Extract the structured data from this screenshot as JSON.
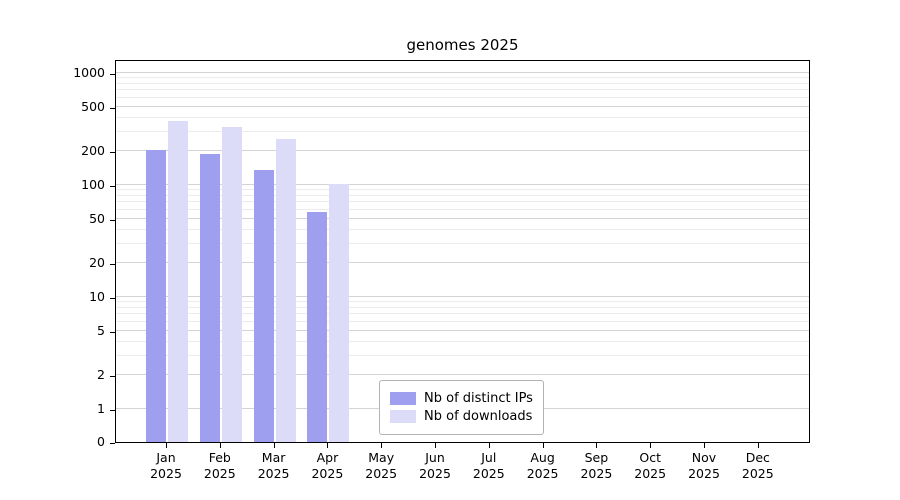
{
  "chart_data": {
    "type": "bar",
    "title": "genomes 2025",
    "year": "2025",
    "categories": [
      "Jan",
      "Feb",
      "Mar",
      "Apr",
      "May",
      "Jun",
      "Jul",
      "Aug",
      "Sep",
      "Oct",
      "Nov",
      "Dec"
    ],
    "series": [
      {
        "name": "Nb of distinct IPs",
        "color": "#9f9ff0",
        "values": [
          205,
          190,
          135,
          58,
          0,
          0,
          0,
          0,
          0,
          0,
          0,
          0
        ]
      },
      {
        "name": "Nb of downloads",
        "color": "#dcdcf8",
        "values": [
          370,
          330,
          255,
          103,
          0,
          0,
          0,
          0,
          0,
          0,
          0,
          0
        ]
      }
    ],
    "yscale": "symlog",
    "yticks": [
      0,
      1,
      2,
      5,
      10,
      20,
      50,
      100,
      200,
      500,
      1000
    ],
    "ylim": [
      0,
      1300
    ],
    "grid": true,
    "legend_position": "lower center"
  }
}
